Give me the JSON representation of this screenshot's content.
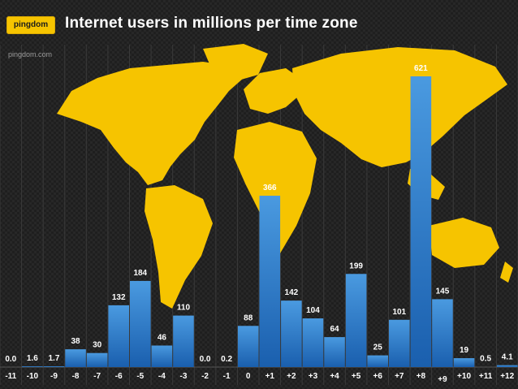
{
  "header": {
    "logo_text": "pingdom",
    "logo_sub": "pingdom.com"
  },
  "colors": {
    "map": "#f6c400",
    "bar_top": "#4a9ae0",
    "bar_bottom": "#1a5fae",
    "grid": "#3a3a3a"
  },
  "chart_data": {
    "type": "bar",
    "title": "Internet users in millions per time zone",
    "xlabel": "",
    "ylabel": "",
    "categories": [
      "-11",
      "-10",
      "-9",
      "-8",
      "-7",
      "-6",
      "-5",
      "-4",
      "-3",
      "-2",
      "-1",
      "0",
      "+1",
      "+2",
      "+3",
      "+4",
      "+5",
      "+6",
      "+7",
      "+8",
      "+9",
      "+10",
      "+11",
      "+12"
    ],
    "values": [
      0.0,
      1.6,
      1.7,
      38,
      30,
      132,
      184,
      46,
      110,
      0.0,
      0.2,
      88,
      366,
      142,
      104,
      64,
      199,
      25,
      101,
      621,
      145,
      19,
      0.5,
      4.1
    ],
    "value_labels": [
      "0.0",
      "1.6",
      "1.7",
      "38",
      "30",
      "132",
      "184",
      "46",
      "110",
      "0.0",
      "0.2",
      "88",
      "366",
      "142",
      "104",
      "64",
      "199",
      "25",
      "101",
      "621",
      "145",
      "19",
      "0.5",
      "4.1"
    ],
    "ylim": [
      0,
      680
    ],
    "grid": false,
    "legend": "none"
  }
}
